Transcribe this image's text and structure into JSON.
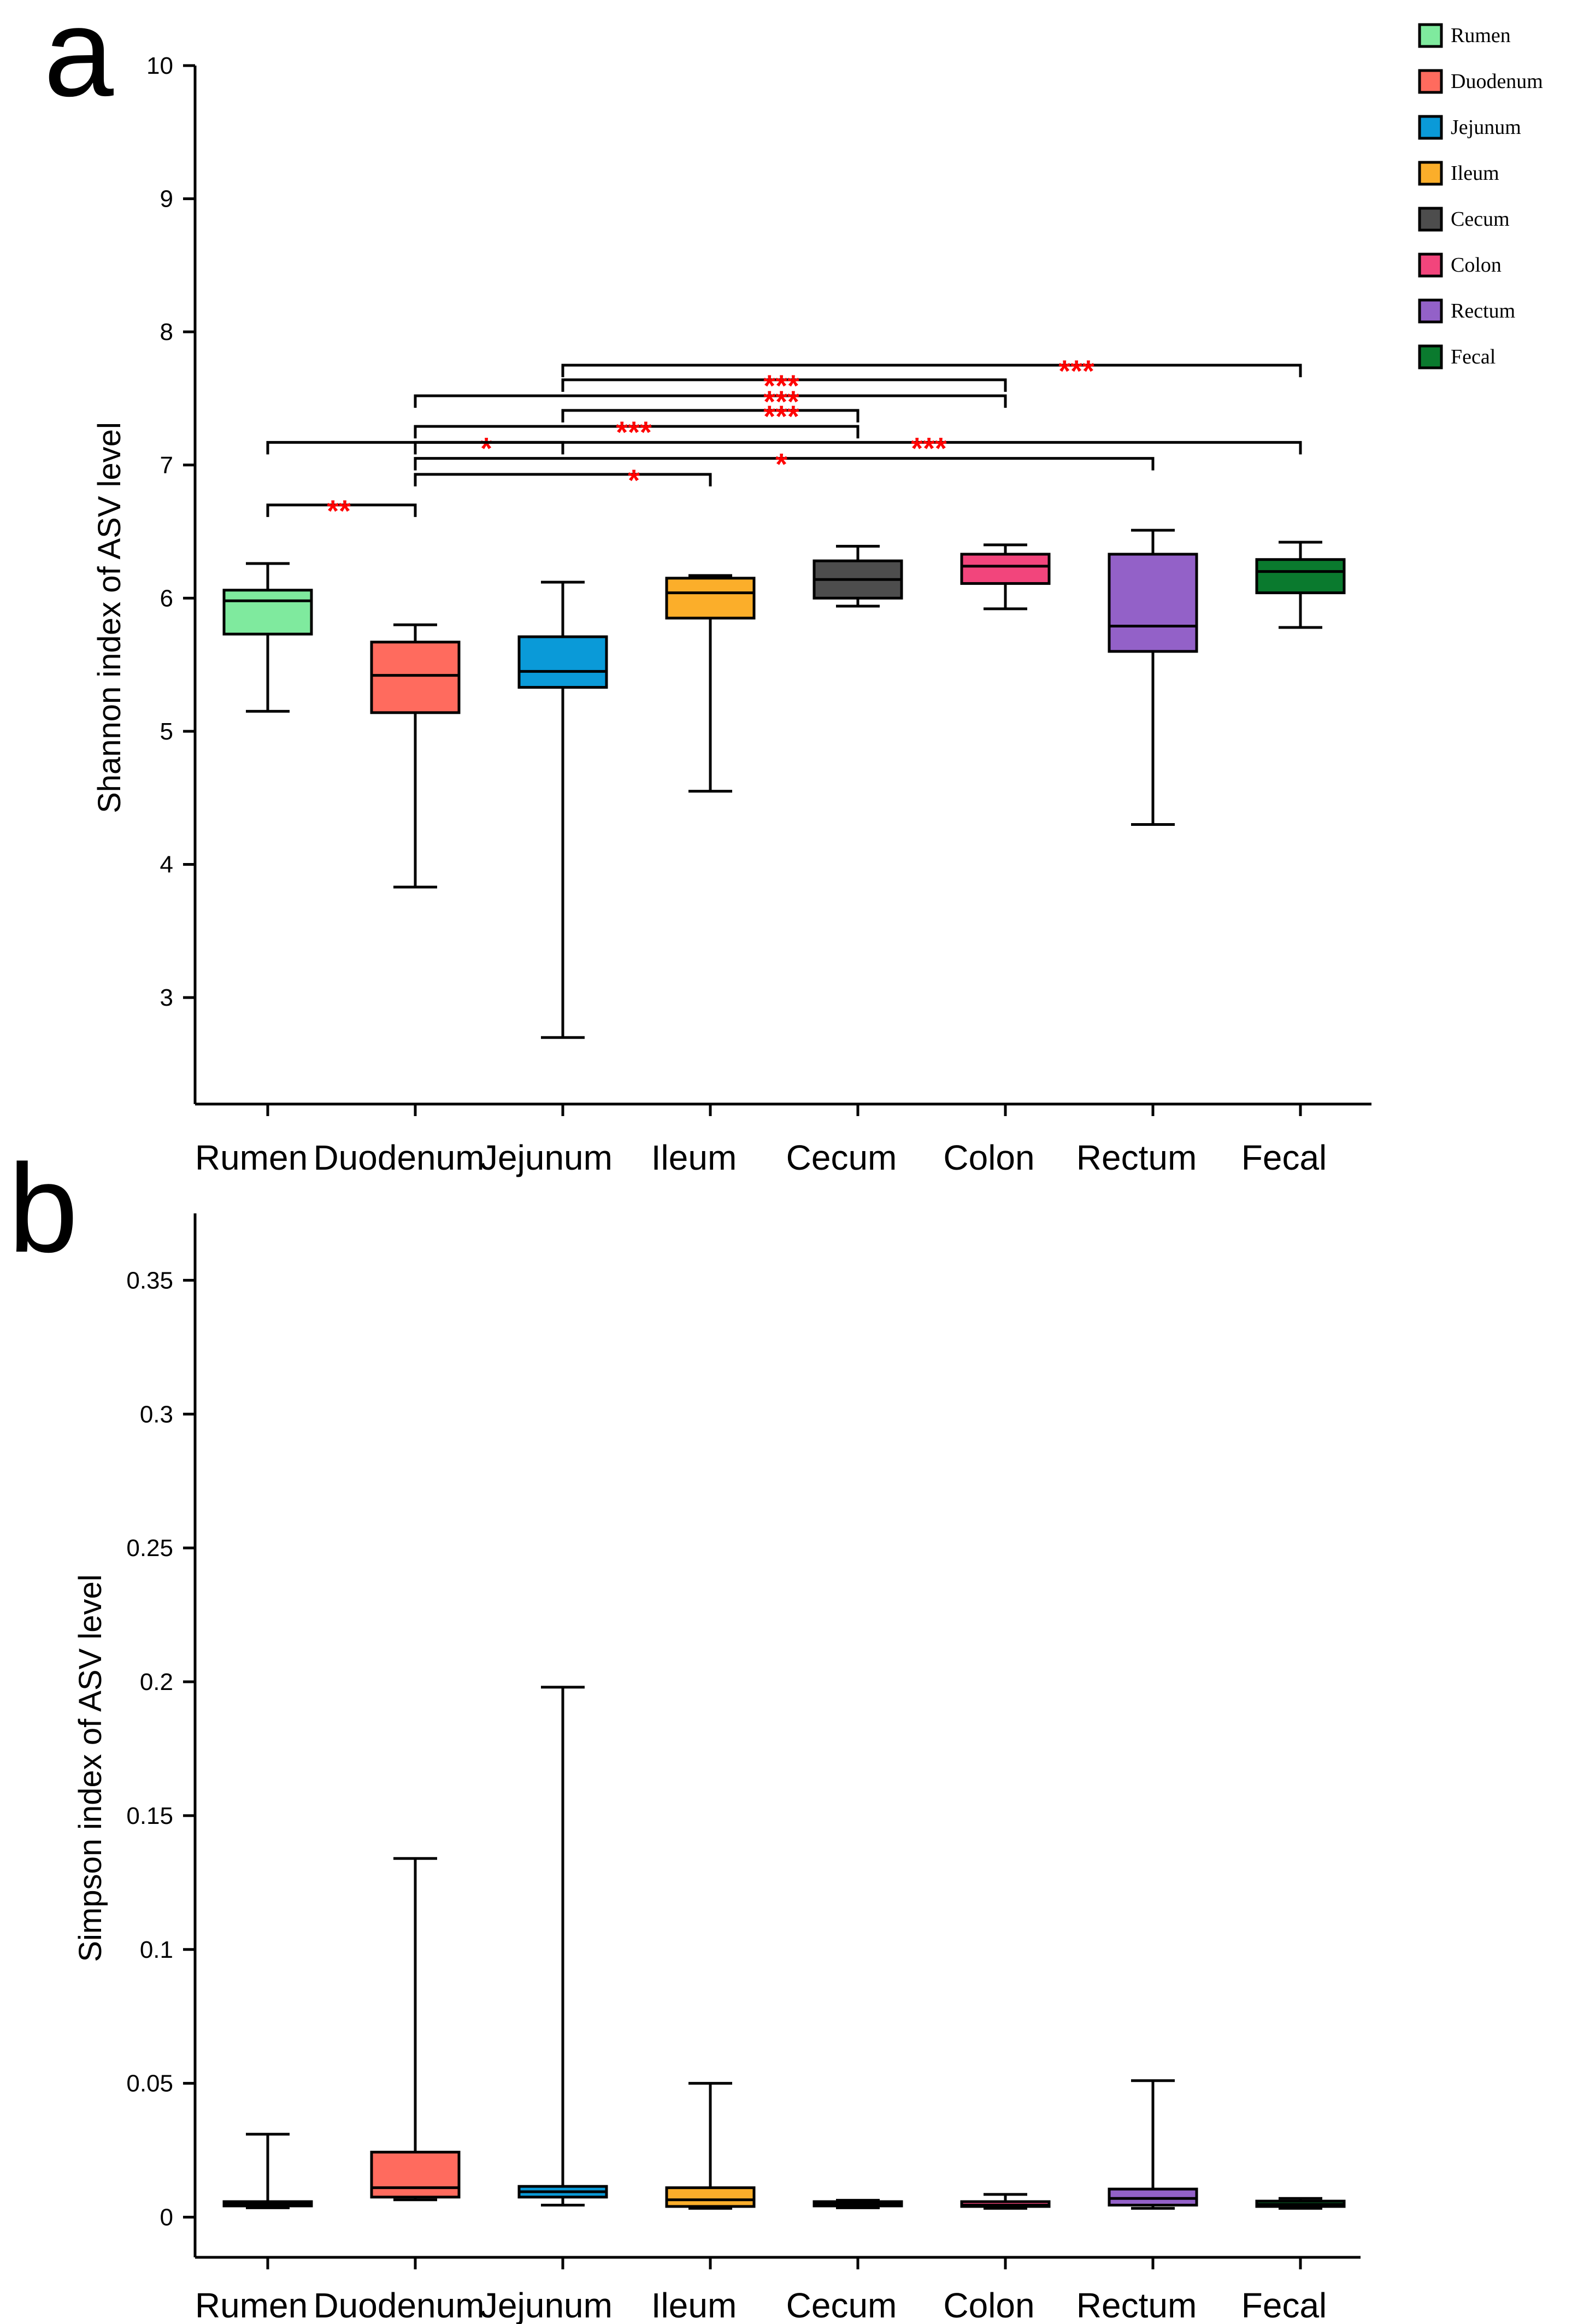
{
  "panel_labels": [
    "a",
    "b"
  ],
  "legend": [
    {
      "label": "Rumen",
      "color": "#7FEA9E"
    },
    {
      "label": "Duodenum",
      "color": "#FF6B5E"
    },
    {
      "label": "Jejunum",
      "color": "#0A9AD8"
    },
    {
      "label": "Ileum",
      "color": "#FBAE2A"
    },
    {
      "label": "Cecum",
      "color": "#4D4D4D"
    },
    {
      "label": "Colon",
      "color": "#F2457C"
    },
    {
      "label": "Rectum",
      "color": "#9361C8"
    },
    {
      "label": "Fecal",
      "color": "#0A7A2E"
    }
  ],
  "chart_data": [
    {
      "type": "box",
      "panel": "a",
      "ylabel": "Shannon index of ASV level",
      "xlabel": "",
      "ylim": [
        2.2,
        10
      ],
      "yticks": [
        3,
        4,
        5,
        6,
        7,
        8,
        9,
        10
      ],
      "categories": [
        "Rumen",
        "Duodenum",
        "Jejunum",
        "Ileum",
        "Cecum",
        "Colon",
        "Rectum",
        "Fecal"
      ],
      "boxes": [
        {
          "min": 5.15,
          "q1": 5.73,
          "median": 5.98,
          "q3": 6.06,
          "max": 6.26
        },
        {
          "min": 3.83,
          "q1": 5.14,
          "median": 5.42,
          "q3": 5.67,
          "max": 5.8
        },
        {
          "min": 2.7,
          "q1": 5.33,
          "median": 5.45,
          "q3": 5.71,
          "max": 6.12
        },
        {
          "min": 4.55,
          "q1": 5.85,
          "median": 6.04,
          "q3": 6.15,
          "max": 6.17
        },
        {
          "min": 5.94,
          "q1": 6.0,
          "median": 6.14,
          "q3": 6.28,
          "max": 6.39
        },
        {
          "min": 5.92,
          "q1": 6.11,
          "median": 6.24,
          "q3": 6.33,
          "max": 6.4
        },
        {
          "min": 4.3,
          "q1": 5.6,
          "median": 5.79,
          "q3": 6.33,
          "max": 6.51
        },
        {
          "min": 5.78,
          "q1": 6.04,
          "median": 6.2,
          "q3": 6.29,
          "max": 6.42
        }
      ],
      "significance": [
        {
          "from": "Rumen",
          "to": "Duodenum",
          "y": 6.7,
          "label": "**",
          "label_at": "Rumen"
        },
        {
          "from": "Rumen",
          "to": "Jejunum",
          "y": 7.17,
          "label": "*",
          "label_at": "Duodenum"
        },
        {
          "from": "Duodenum",
          "to": "Ileum",
          "y": 6.93,
          "label": "*",
          "label_at": "Jejunum"
        },
        {
          "from": "Duodenum",
          "to": "Rectum",
          "y": 7.05,
          "label": "*",
          "label_at": "Ileum"
        },
        {
          "from": "Duodenum",
          "to": "Fecal",
          "y": 7.17,
          "label": "***",
          "label_at": "Cecum"
        },
        {
          "from": "Duodenum",
          "to": "Cecum",
          "y": 7.29,
          "label": "***",
          "label_at": "Jejunum"
        },
        {
          "from": "Jejunum",
          "to": "Cecum",
          "y": 7.41,
          "label": "***",
          "label_at": "Ileum"
        },
        {
          "from": "Duodenum",
          "to": "Colon",
          "y": 7.52,
          "label": "***",
          "label_at": "Ileum"
        },
        {
          "from": "Jejunum",
          "to": "Colon",
          "y": 7.64,
          "label": "***",
          "label_at": "Ileum"
        },
        {
          "from": "Jejunum",
          "to": "Fecal",
          "y": 7.75,
          "label": "***",
          "label_at": "Colon"
        }
      ]
    },
    {
      "type": "box",
      "panel": "b",
      "ylabel": "Simpson index of ASV level",
      "xlabel": "",
      "ylim": [
        -0.015,
        0.375
      ],
      "yticks": [
        0,
        0.05,
        0.1,
        0.15,
        0.2,
        0.25,
        0.3,
        0.35
      ],
      "ytick_labels": [
        "0",
        "0.05",
        "0.1",
        "0.15",
        "0.2",
        "0.25",
        "0.3",
        "0.35"
      ],
      "categories": [
        "Rumen",
        "Duodenum",
        "Jejunum",
        "Ileum",
        "Cecum",
        "Colon",
        "Rectum",
        "Fecal"
      ],
      "boxes": [
        {
          "min": 0.0035,
          "q1": 0.0042,
          "median": 0.0048,
          "q3": 0.0058,
          "max": 0.031
        },
        {
          "min": 0.0065,
          "q1": 0.0075,
          "median": 0.011,
          "q3": 0.0243,
          "max": 0.134
        },
        {
          "min": 0.0045,
          "q1": 0.0075,
          "median": 0.0095,
          "q3": 0.0115,
          "max": 0.198
        },
        {
          "min": 0.0033,
          "q1": 0.004,
          "median": 0.0065,
          "q3": 0.011,
          "max": 0.05
        },
        {
          "min": 0.0035,
          "q1": 0.0042,
          "median": 0.0048,
          "q3": 0.0058,
          "max": 0.0063
        },
        {
          "min": 0.0033,
          "q1": 0.004,
          "median": 0.0045,
          "q3": 0.0058,
          "max": 0.0085
        },
        {
          "min": 0.0033,
          "q1": 0.0045,
          "median": 0.007,
          "q3": 0.0105,
          "max": 0.051
        },
        {
          "min": 0.0033,
          "q1": 0.004,
          "median": 0.0048,
          "q3": 0.006,
          "max": 0.007
        }
      ]
    }
  ]
}
